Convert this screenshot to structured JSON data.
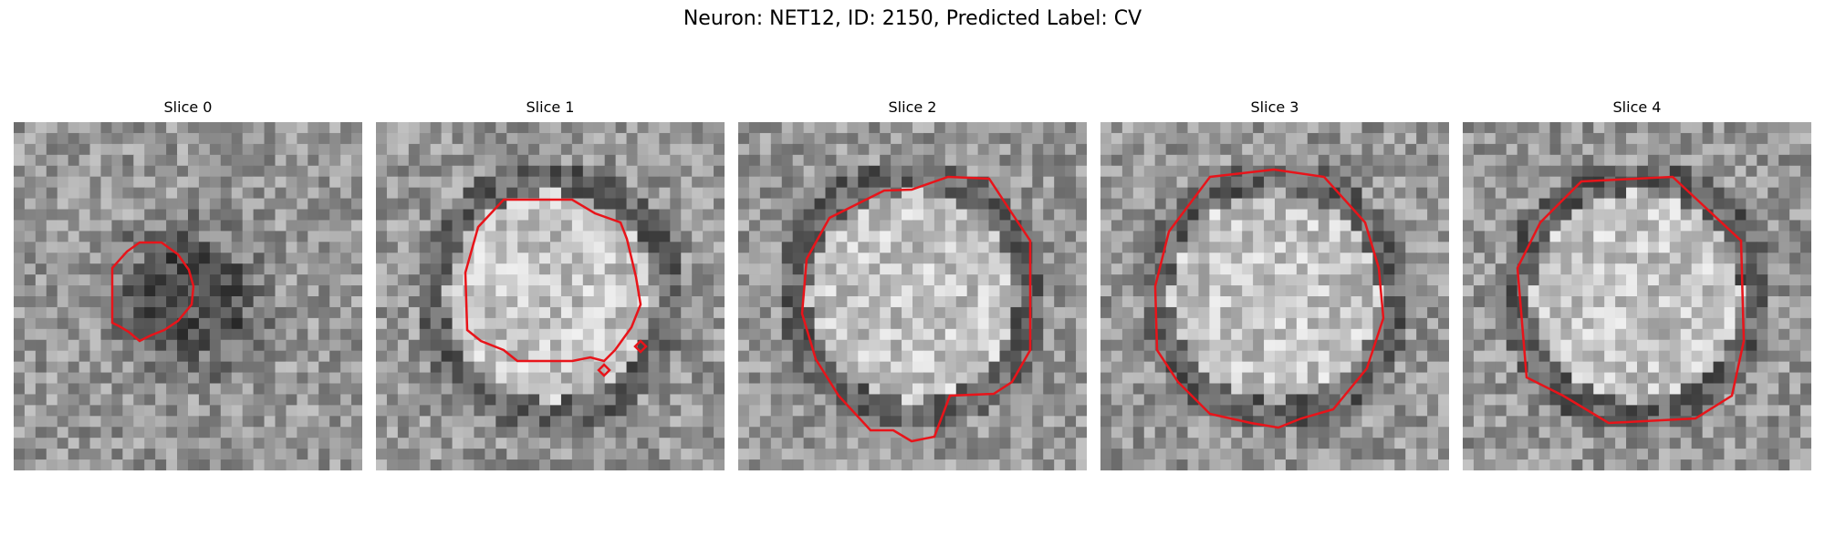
{
  "figure": {
    "title": "Neuron: NET12, ID: 2150, Predicted Label: CV",
    "contour_color": "#e8141a",
    "panels": [
      {
        "title": "Slice 0",
        "bright_center": false
      },
      {
        "title": "Slice 1",
        "bright_center": true
      },
      {
        "title": "Slice 2",
        "bright_center": true
      },
      {
        "title": "Slice 3",
        "bright_center": true
      },
      {
        "title": "Slice 4",
        "bright_center": true
      }
    ]
  }
}
